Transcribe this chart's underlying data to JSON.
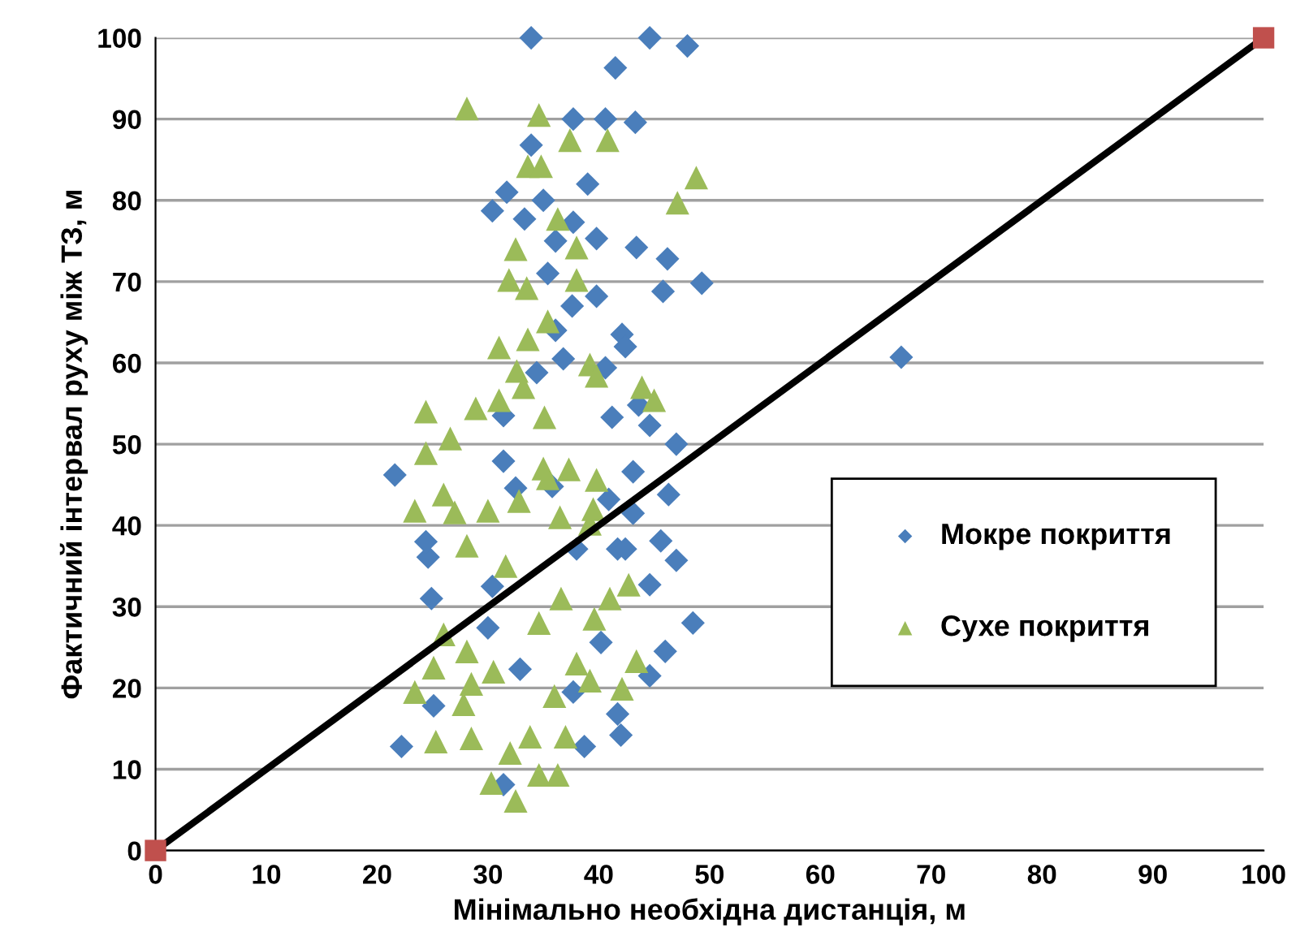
{
  "chart_data": {
    "type": "scatter",
    "xlabel": "Мінімально необхідна дистанція, м",
    "ylabel": "Фактичний інтервал руху між ТЗ, м",
    "xlim": [
      0,
      100
    ],
    "ylim": [
      0,
      100
    ],
    "xticks": [
      0,
      10,
      20,
      30,
      40,
      50,
      60,
      70,
      80,
      90,
      100
    ],
    "yticks": [
      0,
      10,
      20,
      30,
      40,
      50,
      60,
      70,
      80,
      90,
      100
    ],
    "grid": "y",
    "legend": "right",
    "series": [
      {
        "name": "Мокре покриття",
        "marker": "diamond",
        "color": "#4a7ebb",
        "x": [
          33.9,
          44.6,
          48,
          41.5,
          37.7,
          40.6,
          43.3,
          33.9,
          39,
          31.7,
          30.4,
          35,
          33.3,
          37.7,
          39.8,
          36.1,
          43.4,
          46.2,
          35.4,
          49.3,
          45.8,
          39.8,
          37.6,
          36.1,
          42.1,
          42.4,
          36.8,
          40.6,
          34.4,
          43.6,
          41.2,
          67.3,
          21.6,
          44.6,
          47,
          43.1,
          46.3,
          43.1,
          41.7,
          45.6,
          47,
          44.6,
          24.6,
          24.9,
          48.5,
          46,
          44.6,
          30,
          25.1,
          22.2,
          42,
          38.7,
          31.4,
          32.5,
          30.4,
          31.4,
          41.7,
          40.2,
          32.9,
          37.7,
          31.4,
          35.8,
          40.9,
          38,
          42.4,
          24.4
        ],
        "values": [
          100,
          100,
          99,
          96.3,
          90,
          90,
          89.6,
          86.8,
          82,
          81,
          78.7,
          80,
          77.7,
          77.3,
          75.3,
          75,
          74.2,
          72.8,
          71,
          69.8,
          68.8,
          68.2,
          67,
          64,
          63.5,
          62,
          60.5,
          59.4,
          58.8,
          54.8,
          53.3,
          60.7,
          46.2,
          52.3,
          50,
          46.6,
          43.8,
          41.5,
          37.1,
          38.1,
          35.7,
          32.7,
          36.1,
          31,
          28,
          24.5,
          21.5,
          27.4,
          17.8,
          12.8,
          14.2,
          12.8,
          47.9,
          44.6,
          32.5,
          8.1,
          16.8,
          25.6,
          22.3,
          19.5,
          53.5,
          44.8,
          43.2,
          37.1,
          37.1,
          38
        ]
      },
      {
        "name": "Сухе покриття",
        "marker": "triangle",
        "color": "#9bbb59",
        "x": [
          28.1,
          34.6,
          37.4,
          40.8,
          33.6,
          34.8,
          48.8,
          47.1,
          36.3,
          32.5,
          38,
          31.9,
          38,
          33.5,
          35.4,
          31,
          33.6,
          32.6,
          39.2,
          39.8,
          43.9,
          45,
          33.2,
          24.4,
          28.9,
          31,
          35.1,
          24.4,
          26.6,
          23.4,
          26,
          27,
          30,
          28.1,
          39.8,
          37.3,
          35.4,
          39.2,
          42.7,
          26,
          28.1,
          25.1,
          23.4,
          28.5,
          25.3,
          28.5,
          30.3,
          32.5,
          34.6,
          36.3,
          43.4,
          42.1,
          39.2,
          31.6,
          34.6,
          36.6,
          39.5,
          32.8,
          30.5,
          36,
          38,
          27.8,
          33.8,
          32,
          37,
          39.6,
          35,
          36.5,
          41
        ],
        "values": [
          91.3,
          90.5,
          87.4,
          87.4,
          84.2,
          84.2,
          82.8,
          79.7,
          77.7,
          74,
          74.2,
          70.2,
          70.2,
          69.2,
          65.1,
          61.9,
          62.9,
          59,
          59.8,
          58.4,
          57,
          55.4,
          57,
          54,
          54.4,
          55.4,
          53.3,
          48.9,
          50.7,
          41.8,
          43.8,
          41.6,
          41.8,
          37.5,
          45.6,
          46.9,
          45.8,
          40.2,
          32.7,
          26.6,
          24.5,
          22.5,
          19.5,
          20.5,
          13.4,
          13.8,
          8.3,
          6.1,
          9.3,
          9.3,
          23.3,
          19.9,
          20.9,
          35,
          28,
          31,
          42,
          43,
          22,
          19,
          23,
          18,
          14,
          12,
          14,
          28.5,
          47,
          41,
          31
        ]
      },
      {
        "type": "line",
        "marker": "none",
        "color": "#000000",
        "x": [
          0,
          100
        ],
        "values": [
          0,
          100
        ]
      },
      {
        "marker": "square",
        "color": "#c0504d",
        "x": [
          0,
          100
        ],
        "values": [
          0,
          100
        ]
      }
    ]
  }
}
